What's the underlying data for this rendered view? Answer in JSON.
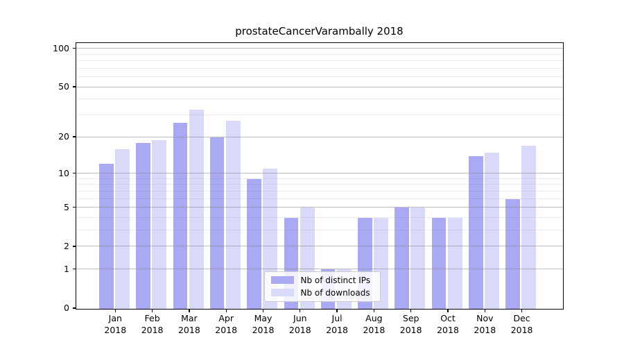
{
  "title": "prostateCancerVarambally 2018",
  "chart_data": {
    "type": "bar",
    "title": "prostateCancerVarambally 2018",
    "categories": [
      "Jan",
      "Feb",
      "Mar",
      "Apr",
      "May",
      "Jun",
      "Jul",
      "Aug",
      "Sep",
      "Oct",
      "Nov",
      "Dec"
    ],
    "year_label": "2018",
    "series": [
      {
        "name": "Nb of distinct IPs",
        "color": "#a9a9f4",
        "values": [
          12,
          18,
          26,
          20,
          9,
          4,
          1,
          4,
          5,
          4,
          14,
          6
        ]
      },
      {
        "name": "Nb of downloads",
        "color": "#d9d9f9",
        "values": [
          16,
          19,
          33,
          27,
          11,
          5,
          1,
          4,
          5,
          4,
          15,
          17
        ]
      }
    ],
    "xlabel": "",
    "ylabel": "",
    "yscale": "log1p",
    "ylim": [
      0,
      110
    ],
    "y_major_ticks": [
      0,
      1,
      2,
      5,
      10,
      20,
      50,
      100
    ],
    "y_minor_ticks": [
      3,
      4,
      6,
      7,
      8,
      9,
      30,
      40,
      60,
      70,
      80,
      90
    ],
    "grid": true,
    "legend_position": "lower-center-inside"
  }
}
